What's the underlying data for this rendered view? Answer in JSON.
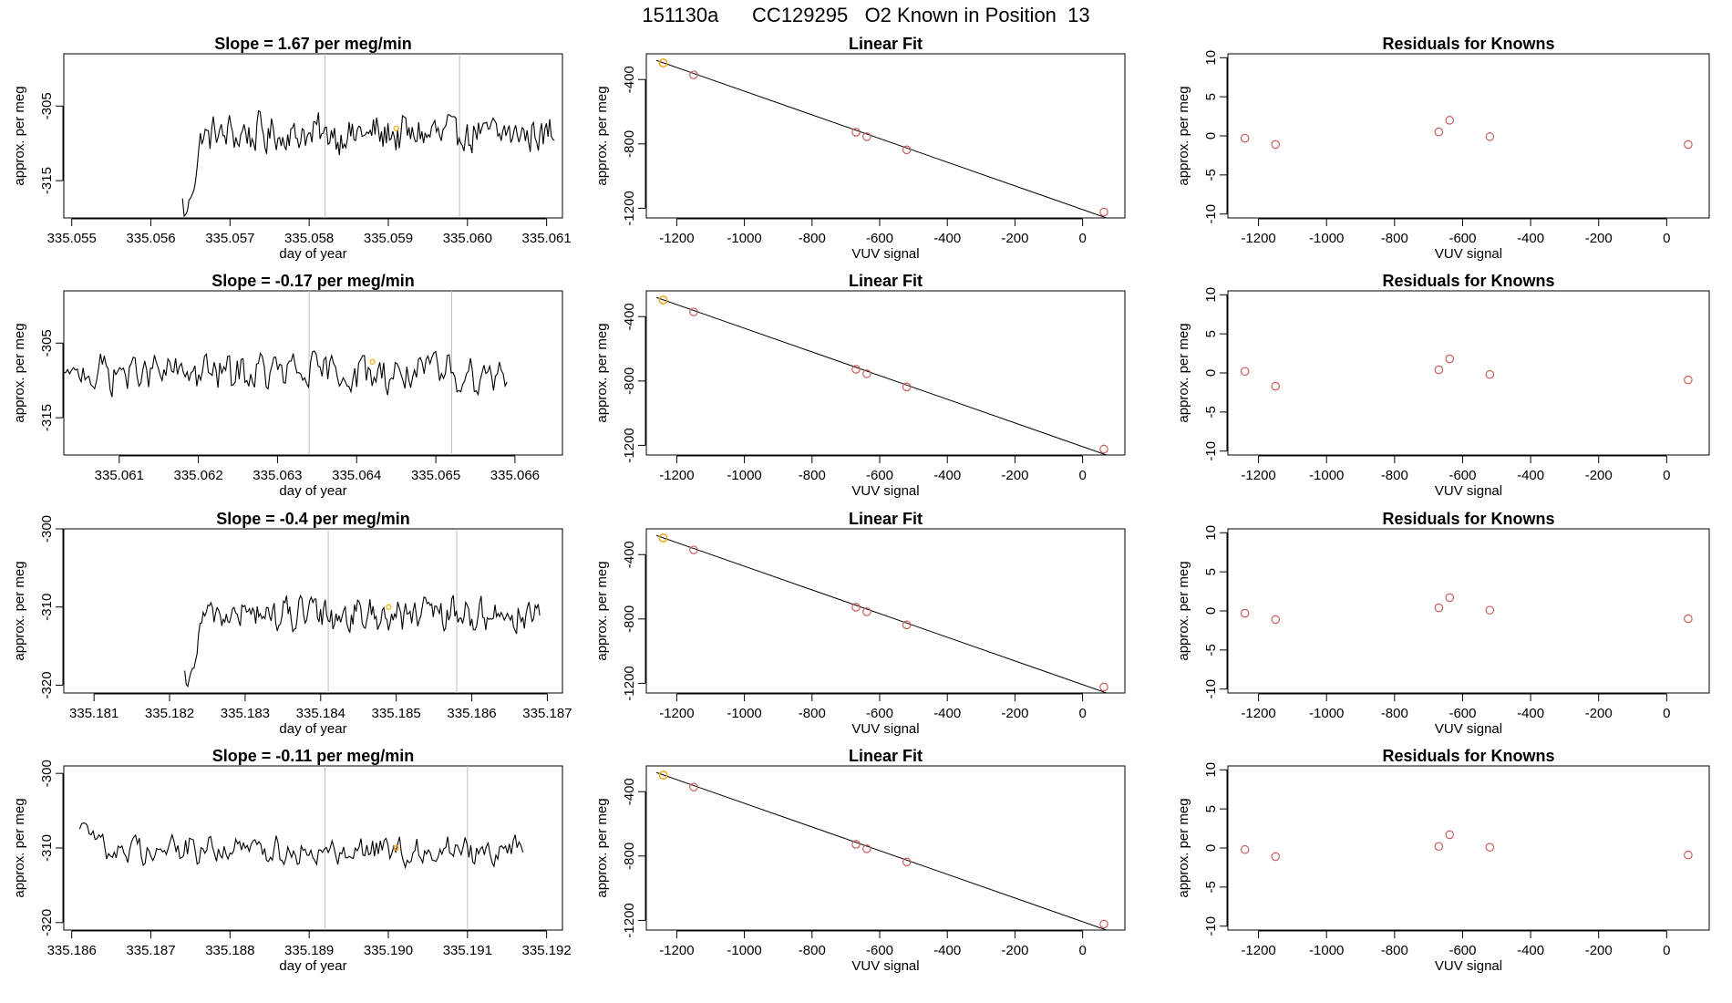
{
  "figure": {
    "title": "151130a      CC129295   O2 Known in Position  13"
  },
  "colors": {
    "series_line": "#000000",
    "known_points": "#cd5c5c",
    "marker_orange": "#ffa500",
    "vertical_guides": "#bfbfbf"
  },
  "chart_data": [
    {
      "type": "line",
      "panel": "row1-timeseries",
      "title": "Slope =  1.67  per meg/min",
      "xlabel": "day of year",
      "ylabel": "approx. per meg",
      "xlim": [
        335.0549,
        335.0612
      ],
      "ylim": [
        -320,
        -298
      ],
      "xticks": [
        335.055,
        335.056,
        335.057,
        335.058,
        335.059,
        335.06,
        335.061
      ],
      "yticks": [
        -305,
        -315
      ],
      "start_x": 335.0564,
      "end_x": 335.0611,
      "y_mean": -308.8,
      "y_amp": 3.2,
      "start_y": -322,
      "vlines": [
        335.0582,
        335.0599
      ],
      "marker": {
        "x": 335.0591,
        "y": -308
      }
    },
    {
      "type": "scatter",
      "panel": "row1-linearfit",
      "title": "Linear Fit",
      "xlabel": "VUV signal",
      "ylabel": "approx. per meg",
      "xlim": [
        -1290,
        125
      ],
      "ylim": [
        -1260,
        -240
      ],
      "xticks": [
        -1200,
        -1000,
        -800,
        -600,
        -400,
        -200,
        0
      ],
      "yticks": [
        -400,
        -800,
        -1200
      ],
      "points": [
        [
          -1240,
          -297
        ],
        [
          -1150,
          -371
        ],
        [
          -670,
          -727
        ],
        [
          -638,
          -755
        ],
        [
          -520,
          -837
        ],
        [
          63,
          -1223
        ]
      ],
      "fit_line": [
        [
          -1260,
          -281
        ],
        [
          125,
          -1300
        ]
      ]
    },
    {
      "type": "scatter",
      "panel": "row1-residuals",
      "title": "Residuals for Knowns",
      "xlabel": "VUV signal",
      "ylabel": "approx. per meg",
      "xlim": [
        -1290,
        125
      ],
      "ylim": [
        -10.5,
        10.5
      ],
      "xticks": [
        -1200,
        -1000,
        -800,
        -600,
        -400,
        -200,
        0
      ],
      "yticks": [
        10,
        5,
        0,
        -5,
        -10
      ],
      "points": [
        [
          -1240,
          -0.3
        ],
        [
          -1150,
          -1.1
        ],
        [
          -670,
          0.5
        ],
        [
          -638,
          2.0
        ],
        [
          -520,
          -0.1
        ],
        [
          63,
          -1.1
        ]
      ]
    },
    {
      "type": "line",
      "panel": "row2-timeseries",
      "title": "Slope =  -0.17  per meg/min",
      "xlabel": "day of year",
      "ylabel": "approx. per meg",
      "xlim": [
        335.0603,
        335.0666
      ],
      "ylim": [
        -320,
        -298
      ],
      "xticks": [
        335.061,
        335.062,
        335.063,
        335.064,
        335.065,
        335.066
      ],
      "yticks": [
        -305,
        -315
      ],
      "start_x": 335.0603,
      "end_x": 335.0659,
      "y_mean": -309.0,
      "y_amp": 3.2,
      "start_y": -309,
      "vlines": [
        335.0634,
        335.0652
      ],
      "marker": {
        "x": 335.0642,
        "y": -307.5
      }
    },
    {
      "type": "scatter",
      "panel": "row2-linearfit",
      "title": "Linear Fit",
      "xlabel": "VUV signal",
      "ylabel": "approx. per meg",
      "xlim": [
        -1290,
        125
      ],
      "ylim": [
        -1260,
        -240
      ],
      "xticks": [
        -1200,
        -1000,
        -800,
        -600,
        -400,
        -200,
        0
      ],
      "yticks": [
        -400,
        -800,
        -1200
      ],
      "points": [
        [
          -1240,
          -297
        ],
        [
          -1150,
          -371
        ],
        [
          -670,
          -727
        ],
        [
          -638,
          -755
        ],
        [
          -520,
          -837
        ],
        [
          63,
          -1223
        ]
      ],
      "fit_line": [
        [
          -1260,
          -281
        ],
        [
          125,
          -1300
        ]
      ]
    },
    {
      "type": "scatter",
      "panel": "row2-residuals",
      "title": "Residuals for Knowns",
      "xlabel": "VUV signal",
      "ylabel": "approx. per meg",
      "xlim": [
        -1290,
        125
      ],
      "ylim": [
        -10.5,
        10.5
      ],
      "xticks": [
        -1200,
        -1000,
        -800,
        -600,
        -400,
        -200,
        0
      ],
      "yticks": [
        10,
        5,
        0,
        -5,
        -10
      ],
      "points": [
        [
          -1240,
          0.2
        ],
        [
          -1150,
          -1.7
        ],
        [
          -670,
          0.4
        ],
        [
          -638,
          1.8
        ],
        [
          -520,
          -0.2
        ],
        [
          63,
          -0.9
        ]
      ]
    },
    {
      "type": "line",
      "panel": "row3-timeseries",
      "title": "Slope =  -0.4  per meg/min",
      "xlabel": "day of year",
      "ylabel": "approx. per meg",
      "xlim": [
        335.1806,
        335.1872
      ],
      "ylim": [
        -321,
        -300
      ],
      "xticks": [
        335.181,
        335.182,
        335.183,
        335.184,
        335.185,
        335.186,
        335.187
      ],
      "yticks": [
        -300,
        -310,
        -320
      ],
      "start_x": 335.1822,
      "end_x": 335.1869,
      "y_mean": -311.0,
      "y_amp": 2.6,
      "start_y": -322,
      "vlines": [
        335.1841,
        335.1858
      ],
      "marker": {
        "x": 335.1849,
        "y": -310
      }
    },
    {
      "type": "scatter",
      "panel": "row3-linearfit",
      "title": "Linear Fit",
      "xlabel": "VUV signal",
      "ylabel": "approx. per meg",
      "xlim": [
        -1290,
        125
      ],
      "ylim": [
        -1260,
        -240
      ],
      "xticks": [
        -1200,
        -1000,
        -800,
        -600,
        -400,
        -200,
        0
      ],
      "yticks": [
        -400,
        -800,
        -1200
      ],
      "points": [
        [
          -1240,
          -297
        ],
        [
          -1150,
          -371
        ],
        [
          -670,
          -727
        ],
        [
          -638,
          -755
        ],
        [
          -520,
          -837
        ],
        [
          63,
          -1223
        ]
      ],
      "fit_line": [
        [
          -1260,
          -281
        ],
        [
          125,
          -1300
        ]
      ]
    },
    {
      "type": "scatter",
      "panel": "row3-residuals",
      "title": "Residuals for Knowns",
      "xlabel": "VUV signal",
      "ylabel": "approx. per meg",
      "xlim": [
        -1290,
        125
      ],
      "ylim": [
        -10.5,
        10.5
      ],
      "xticks": [
        -1200,
        -1000,
        -800,
        -600,
        -400,
        -200,
        0
      ],
      "yticks": [
        10,
        5,
        0,
        -5,
        -10
      ],
      "points": [
        [
          -1240,
          -0.3
        ],
        [
          -1150,
          -1.1
        ],
        [
          -670,
          0.4
        ],
        [
          -638,
          1.7
        ],
        [
          -520,
          0.1
        ],
        [
          63,
          -1.0
        ]
      ]
    },
    {
      "type": "line",
      "panel": "row4-timeseries",
      "title": "Slope =  -0.11  per meg/min",
      "xlabel": "day of year",
      "ylabel": "approx. per meg",
      "xlim": [
        335.1859,
        335.1922
      ],
      "ylim": [
        -321,
        -299
      ],
      "xticks": [
        335.186,
        335.187,
        335.188,
        335.189,
        335.19,
        335.191,
        335.192
      ],
      "yticks": [
        -300,
        -310,
        -320
      ],
      "start_x": 335.1861,
      "end_x": 335.1917,
      "y_mean": -310.2,
      "y_amp": 2.4,
      "start_y": -306,
      "vlines": [
        335.1892,
        335.191
      ],
      "marker": {
        "x": 335.1901,
        "y": -310
      }
    },
    {
      "type": "scatter",
      "panel": "row4-linearfit",
      "title": "Linear Fit",
      "xlabel": "VUV signal",
      "ylabel": "approx. per meg",
      "xlim": [
        -1290,
        125
      ],
      "ylim": [
        -1260,
        -240
      ],
      "xticks": [
        -1200,
        -1000,
        -800,
        -600,
        -400,
        -200,
        0
      ],
      "yticks": [
        -400,
        -800,
        -1200
      ],
      "points": [
        [
          -1240,
          -297
        ],
        [
          -1150,
          -371
        ],
        [
          -670,
          -727
        ],
        [
          -638,
          -755
        ],
        [
          -520,
          -837
        ],
        [
          63,
          -1223
        ]
      ],
      "fit_line": [
        [
          -1260,
          -281
        ],
        [
          125,
          -1300
        ]
      ]
    },
    {
      "type": "scatter",
      "panel": "row4-residuals",
      "title": "Residuals for Knowns",
      "xlabel": "VUV signal",
      "ylabel": "approx. per meg",
      "xlim": [
        -1290,
        125
      ],
      "ylim": [
        -10.5,
        10.5
      ],
      "xticks": [
        -1200,
        -1000,
        -800,
        -600,
        -400,
        -200,
        0
      ],
      "yticks": [
        10,
        5,
        0,
        -5,
        -10
      ],
      "points": [
        [
          -1240,
          -0.2
        ],
        [
          -1150,
          -1.1
        ],
        [
          -670,
          0.2
        ],
        [
          -638,
          1.7
        ],
        [
          -520,
          0.1
        ],
        [
          63,
          -0.9
        ]
      ]
    }
  ]
}
